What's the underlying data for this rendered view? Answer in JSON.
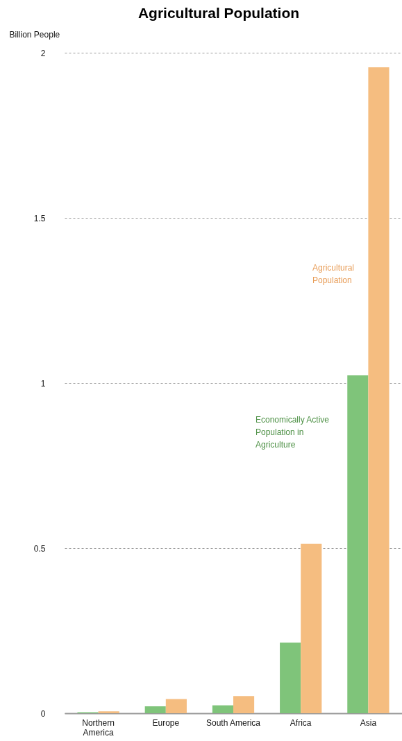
{
  "chart_data": {
    "type": "bar",
    "title": "Agricultural Population",
    "ylabel": "Billion People",
    "categories": [
      "Northern\nAmerica",
      "Europe",
      "South America",
      "Africa",
      "Asia"
    ],
    "series": [
      {
        "name": "Economically Active Population in Agriculture",
        "color": "#7fc47a",
        "values": [
          0.003,
          0.021,
          0.024,
          0.214,
          1.023
        ]
      },
      {
        "name": "Agricultural Population",
        "color": "#f5bd80",
        "values": [
          0.006,
          0.043,
          0.052,
          0.513,
          1.956
        ]
      }
    ],
    "ylim": [
      0,
      2
    ],
    "yticks": [
      0,
      0.5,
      1,
      1.5,
      2
    ],
    "grid": "y",
    "legend": false
  }
}
